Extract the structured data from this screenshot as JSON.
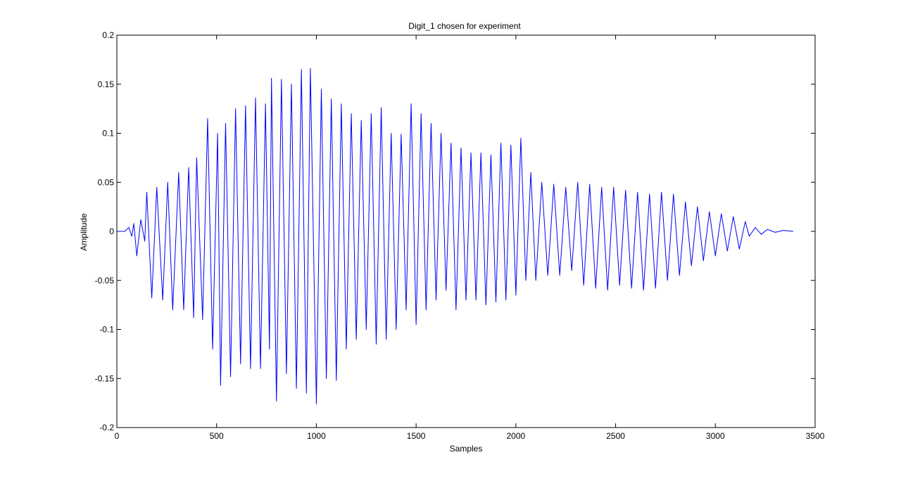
{
  "chart_data": {
    "type": "line",
    "title": "Digit_1 chosen for experiment",
    "xlabel": "Samples",
    "ylabel": "Amplitude",
    "xlim": [
      0,
      3500
    ],
    "ylim": [
      -0.2,
      0.2
    ],
    "xticks": [
      0,
      500,
      1000,
      1500,
      2000,
      2500,
      3000,
      3500
    ],
    "xtick_labels": [
      "0",
      "500",
      "1000",
      "1500",
      "2000",
      "2500",
      "3000",
      "3500"
    ],
    "yticks": [
      -0.2,
      -0.15,
      -0.1,
      -0.05,
      0,
      0.05,
      0.1,
      0.15,
      0.2
    ],
    "ytick_labels": [
      "-0.2",
      "-0.15",
      "-0.1",
      "-0.05",
      "0",
      "0.05",
      "0.1",
      "0.15",
      "0.2"
    ],
    "grid": false,
    "line_color": "#0000ff",
    "series": [
      {
        "x": [
          0,
          40,
          60,
          75,
          85,
          100,
          120,
          140,
          150,
          175,
          200,
          230,
          255,
          280,
          310,
          335,
          360,
          385,
          400,
          430,
          455,
          480,
          505,
          520,
          545,
          570,
          595,
          620,
          645,
          670,
          695,
          720,
          745,
          765,
          775,
          800,
          825,
          850,
          875,
          900,
          925,
          950,
          970,
          1000,
          1025,
          1050,
          1075,
          1100,
          1125,
          1150,
          1175,
          1200,
          1225,
          1250,
          1275,
          1300,
          1325,
          1350,
          1375,
          1400,
          1425,
          1450,
          1475,
          1500,
          1525,
          1550,
          1575,
          1600,
          1625,
          1650,
          1675,
          1700,
          1725,
          1750,
          1775,
          1800,
          1825,
          1850,
          1875,
          1900,
          1925,
          1950,
          1975,
          2000,
          2025,
          2050,
          2075,
          2100,
          2130,
          2160,
          2190,
          2220,
          2250,
          2280,
          2310,
          2340,
          2370,
          2400,
          2430,
          2460,
          2490,
          2520,
          2550,
          2580,
          2610,
          2640,
          2670,
          2700,
          2730,
          2760,
          2790,
          2820,
          2850,
          2880,
          2910,
          2940,
          2970,
          3000,
          3030,
          3060,
          3090,
          3120,
          3150,
          3170,
          3200,
          3230,
          3260,
          3300,
          3340,
          3390
        ],
        "y": [
          0,
          0,
          0.004,
          -0.005,
          0.008,
          -0.025,
          0.012,
          -0.01,
          0.04,
          -0.068,
          0.045,
          -0.07,
          0.05,
          -0.08,
          0.06,
          -0.08,
          0.065,
          -0.088,
          0.075,
          -0.09,
          0.115,
          -0.12,
          0.1,
          -0.157,
          0.11,
          -0.148,
          0.125,
          -0.135,
          0.128,
          -0.14,
          0.136,
          -0.14,
          0.13,
          -0.12,
          0.156,
          -0.173,
          0.155,
          -0.145,
          0.15,
          -0.16,
          0.165,
          -0.165,
          0.166,
          -0.176,
          0.145,
          -0.15,
          0.135,
          -0.152,
          0.13,
          -0.12,
          0.12,
          -0.11,
          0.113,
          -0.1,
          0.12,
          -0.115,
          0.126,
          -0.11,
          0.1,
          -0.1,
          0.099,
          -0.08,
          0.13,
          -0.095,
          0.12,
          -0.08,
          0.11,
          -0.07,
          0.1,
          -0.06,
          0.09,
          -0.08,
          0.085,
          -0.07,
          0.08,
          -0.07,
          0.08,
          -0.075,
          0.078,
          -0.072,
          0.09,
          -0.07,
          0.088,
          -0.065,
          0.095,
          -0.05,
          0.06,
          -0.05,
          0.05,
          -0.045,
          0.048,
          -0.045,
          0.045,
          -0.04,
          0.05,
          -0.055,
          0.048,
          -0.058,
          0.045,
          -0.06,
          0.045,
          -0.055,
          0.042,
          -0.058,
          0.04,
          -0.06,
          0.038,
          -0.058,
          0.04,
          -0.05,
          0.038,
          -0.045,
          0.03,
          -0.035,
          0.025,
          -0.03,
          0.02,
          -0.025,
          0.018,
          -0.02,
          0.015,
          -0.018,
          0.01,
          -0.005,
          0.004,
          -0.003,
          0.002,
          -0.001,
          0.001,
          0
        ]
      }
    ]
  }
}
